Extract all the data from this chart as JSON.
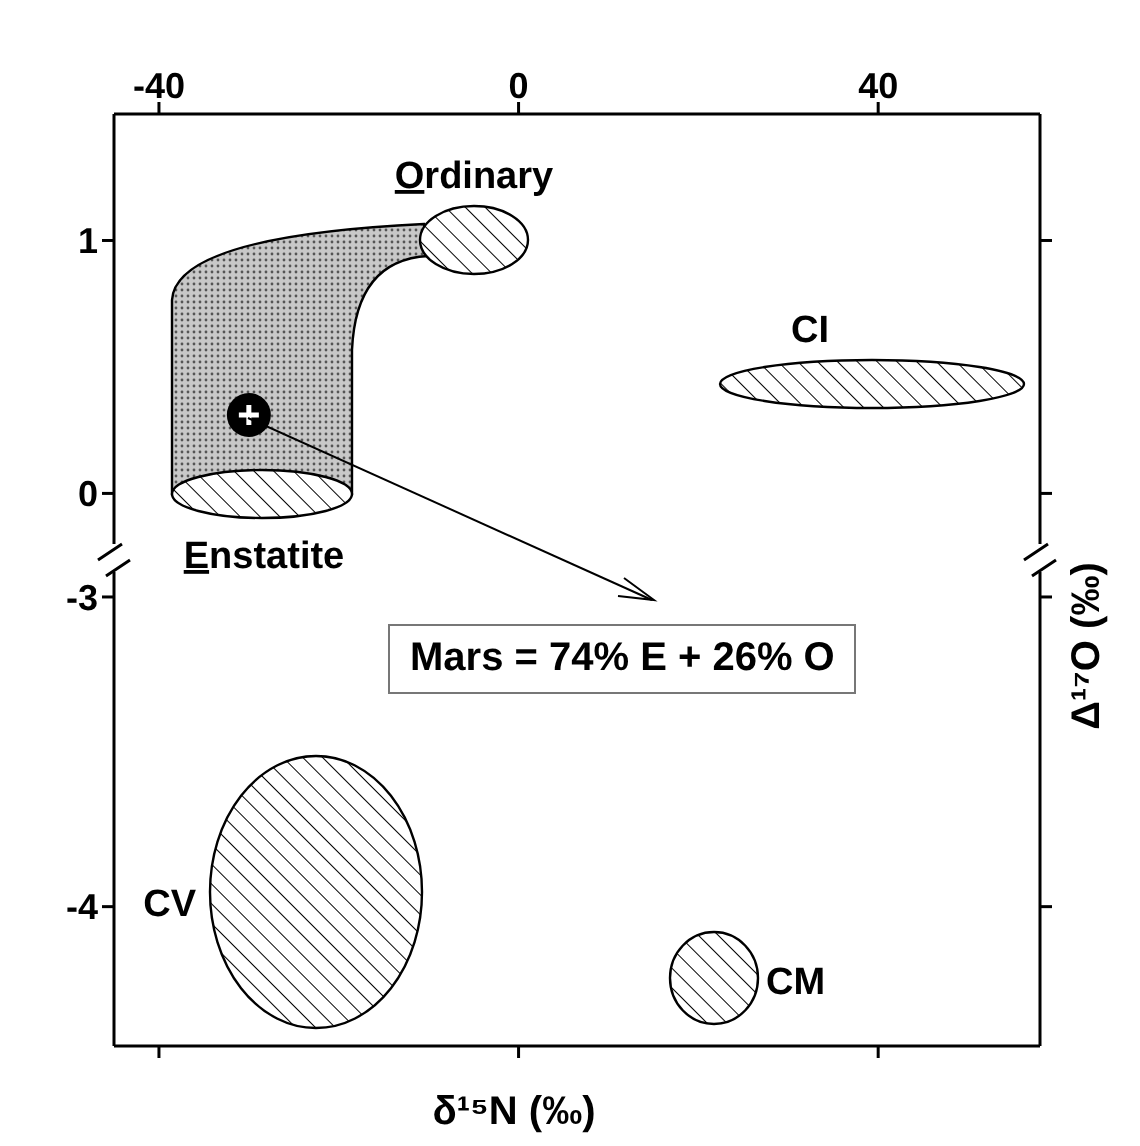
{
  "chart_data": [
    {
      "type": "scatter",
      "xlim": [
        -45,
        58
      ],
      "xticks": [
        -40,
        0,
        40
      ],
      "ylim": [
        -0.2,
        1.5
      ],
      "yticks": [
        0,
        1
      ],
      "marker": "circle",
      "annotations": [
        "Ordinary",
        "CI",
        "Enstatite"
      ],
      "series": [
        {
          "color": "#000000",
          "x": [
            -30
          ],
          "values": [
            0.31
          ]
        }
      ]
    },
    {
      "type": "scatter",
      "xlim": [
        -45,
        58
      ],
      "xticks": [
        -40,
        0,
        40
      ],
      "ylim": [
        -4.45,
        -2.9
      ],
      "yticks": [
        -4,
        -3
      ],
      "tick_labels": "y",
      "xlabel": "δ¹⁵N (‰)",
      "ylabel": "Δ¹⁷O (‰)",
      "annotations": [
        "CV",
        "CM",
        "Mars = 74% E + 26% O"
      ]
    }
  ]
}
